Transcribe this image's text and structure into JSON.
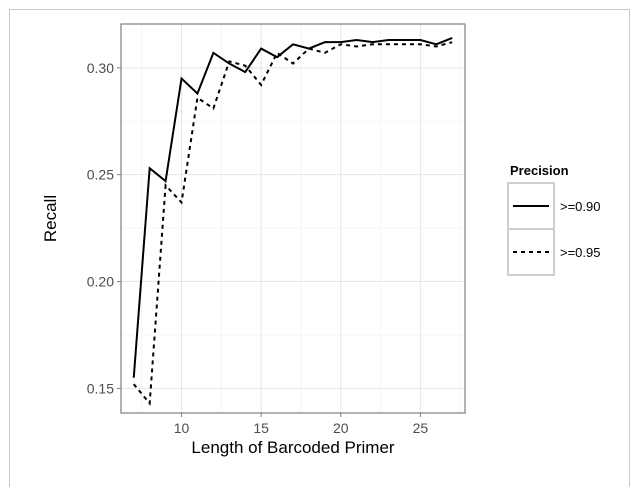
{
  "chart_data": {
    "type": "line",
    "title": "",
    "xlabel": "Length of Barcoded Primer",
    "ylabel": "Recall",
    "xlim": [
      6.2,
      27.8
    ],
    "ylim": [
      0.1385,
      0.3205
    ],
    "x_ticks": [
      10,
      15,
      20,
      25
    ],
    "y_ticks": [
      0.15,
      0.2,
      0.25,
      0.3
    ],
    "x_tick_labels": [
      "10",
      "15",
      "20",
      "25"
    ],
    "y_tick_labels": [
      "0.15",
      "0.20",
      "0.25",
      "0.30"
    ],
    "grid": true,
    "legend_title": "Precision",
    "legend_position": "right",
    "series": [
      {
        "name": ">=0.90",
        "line_style": "solid",
        "x": [
          7,
          8,
          9,
          10,
          11,
          12,
          13,
          14,
          15,
          16,
          17,
          18,
          19,
          20,
          21,
          22,
          23,
          24,
          25,
          26,
          27
        ],
        "y": [
          0.155,
          0.253,
          0.247,
          0.295,
          0.288,
          0.307,
          0.302,
          0.298,
          0.309,
          0.305,
          0.311,
          0.309,
          0.312,
          0.312,
          0.313,
          0.312,
          0.313,
          0.313,
          0.313,
          0.311,
          0.314
        ]
      },
      {
        "name": ">=0.95",
        "line_style": "dashed",
        "x": [
          7,
          8,
          9,
          10,
          11,
          12,
          13,
          14,
          15,
          16,
          17,
          18,
          19,
          20,
          21,
          22,
          23,
          24,
          25,
          26,
          27
        ],
        "y": [
          0.152,
          0.143,
          0.245,
          0.237,
          0.286,
          0.281,
          0.303,
          0.301,
          0.292,
          0.307,
          0.302,
          0.309,
          0.307,
          0.311,
          0.31,
          0.311,
          0.311,
          0.311,
          0.311,
          0.31,
          0.312
        ]
      }
    ]
  }
}
